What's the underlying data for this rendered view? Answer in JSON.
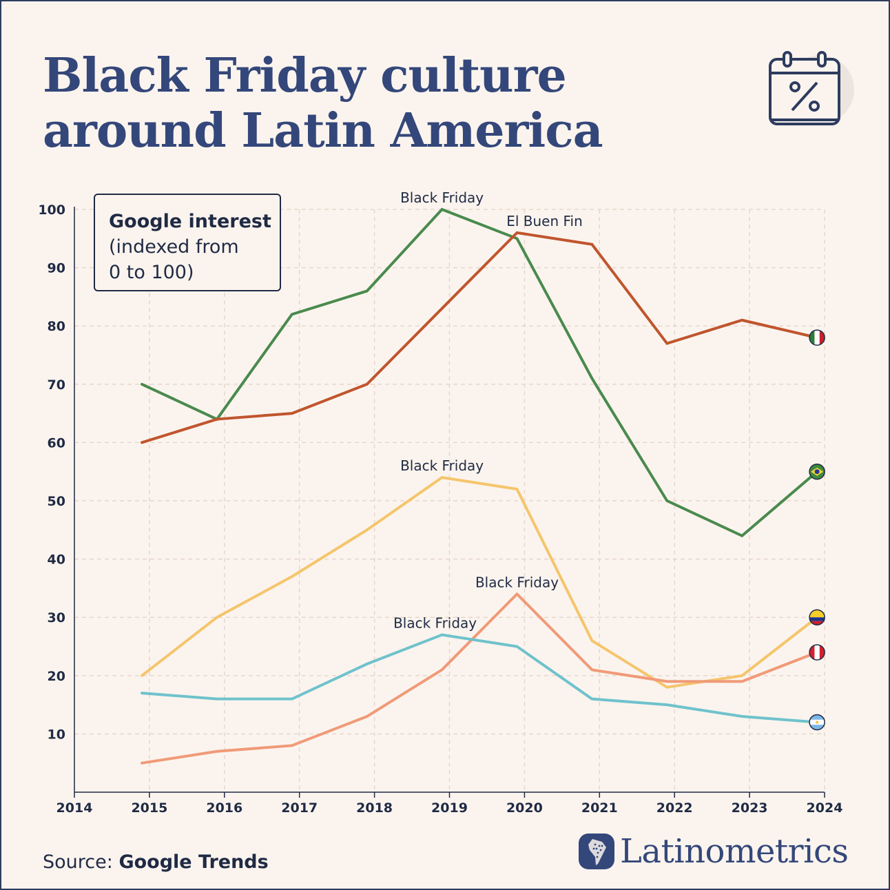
{
  "header": {
    "title_line1": "Black Friday culture",
    "title_line2": "around Latin America",
    "icon": "calendar-percent-icon"
  },
  "legend": {
    "line1": "Google interest",
    "line2": "(indexed from",
    "line3": "0 to 100)"
  },
  "footer": {
    "source_label": "Source:",
    "source_value": "Google Trends",
    "brand": "Latinometrics"
  },
  "colors": {
    "background": "#fbf4ee",
    "title": "#34477a",
    "brazil": "#4a8a4e",
    "mexico": "#c0552e",
    "colombia": "#f5c56c",
    "peru": "#f09a78",
    "argentina": "#6fc2cc"
  },
  "chart_data": {
    "type": "line",
    "title": "",
    "xlabel": "",
    "ylabel": "",
    "xlim": [
      2014,
      2024
    ],
    "ylim": [
      0,
      100
    ],
    "x_ticks": [
      "2014",
      "2015",
      "2016",
      "2017",
      "2018",
      "2019",
      "2020",
      "2021",
      "2022",
      "2023",
      "2024"
    ],
    "y_ticks": [
      "10",
      "20",
      "30",
      "40",
      "50",
      "60",
      "70",
      "80",
      "90",
      "100"
    ],
    "grid": true,
    "x": [
      2014.9,
      2015.9,
      2016.9,
      2017.9,
      2018.9,
      2019.9,
      2020.9,
      2021.9,
      2022.9,
      2023.9
    ],
    "series": [
      {
        "name": "Black Friday",
        "country": "Brazil",
        "color": "#4a8a4e",
        "flag": "brazil-flag-icon",
        "values": [
          70,
          64,
          82,
          86,
          100,
          95,
          71,
          50,
          44,
          55
        ]
      },
      {
        "name": "El Buen Fin",
        "country": "Mexico",
        "color": "#c0552e",
        "flag": "mexico-flag-icon",
        "values": [
          60,
          64,
          65,
          70,
          83,
          96,
          94,
          77,
          81,
          78
        ]
      },
      {
        "name": "Black Friday",
        "country": "Colombia",
        "color": "#f5c56c",
        "flag": "colombia-flag-icon",
        "values": [
          20,
          30,
          37,
          45,
          54,
          52,
          26,
          18,
          20,
          30
        ]
      },
      {
        "name": "Black Friday",
        "country": "Peru",
        "color": "#f09a78",
        "flag": "peru-flag-icon",
        "values": [
          5,
          7,
          8,
          13,
          21,
          34,
          21,
          19,
          19,
          24
        ]
      },
      {
        "name": "Black Friday",
        "country": "Argentina",
        "color": "#6fc2cc",
        "flag": "argentina-flag-icon",
        "values": [
          17,
          16,
          16,
          22,
          27,
          25,
          16,
          15,
          13,
          12
        ]
      }
    ],
    "annotations": [
      {
        "text": "Black Friday",
        "series": 0,
        "index": 4
      },
      {
        "text": "El Buen Fin",
        "series": 1,
        "index": 5
      },
      {
        "text": "Black Friday",
        "series": 2,
        "index": 4
      },
      {
        "text": "Black Friday",
        "series": 3,
        "index": 5
      },
      {
        "text": "Black Friday",
        "series": 4,
        "index": 4
      }
    ]
  }
}
